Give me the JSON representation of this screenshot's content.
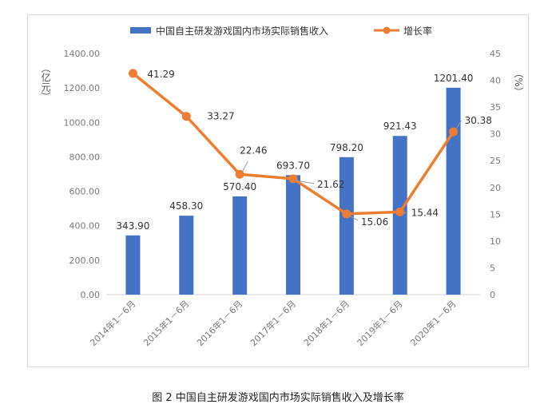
{
  "caption": "图 2 中国自主研发游戏国内市场实际销售收入及增长率",
  "colors": {
    "bar": "#4472C4",
    "line": "#ED7D31",
    "grid": "#e4e4e4",
    "leader": "#9a9a9a"
  },
  "chart_data": {
    "type": "bar",
    "categories": [
      "2014年1－6月",
      "2015年1－6月",
      "2016年1－6月",
      "2017年1－6月",
      "2018年1－6月",
      "2019年1－6月",
      "2020年1－6月"
    ],
    "series": [
      {
        "name": "中国自主研发游戏国内市场实际销售收入",
        "type": "bar",
        "axis": "left",
        "values": [
          343.9,
          458.3,
          570.4,
          693.7,
          798.2,
          921.43,
          1201.4
        ],
        "labels": [
          "343.90",
          "458.30",
          "570.40",
          "693.70",
          "798.20",
          "921.43",
          "1201.40"
        ]
      },
      {
        "name": "增长率",
        "type": "line",
        "axis": "right",
        "values": [
          41.29,
          33.27,
          22.46,
          21.62,
          15.06,
          15.44,
          30.38
        ],
        "labels": [
          "41.29",
          "33.27",
          "22.46",
          "21.62",
          "15.06",
          "15.44",
          "30.38"
        ]
      }
    ],
    "y_left": {
      "label": "（亿元）",
      "min": 0,
      "max": 1400,
      "ticks": [
        "0.00",
        "200.00",
        "400.00",
        "600.00",
        "800.00",
        "1000.00",
        "1200.00",
        "1400.00"
      ]
    },
    "y_right": {
      "label": "（%）",
      "min": 0,
      "max": 45,
      "ticks": [
        "0",
        "5",
        "10",
        "15",
        "20",
        "25",
        "30",
        "35",
        "40",
        "45"
      ]
    },
    "grid": false,
    "legend": "top"
  }
}
